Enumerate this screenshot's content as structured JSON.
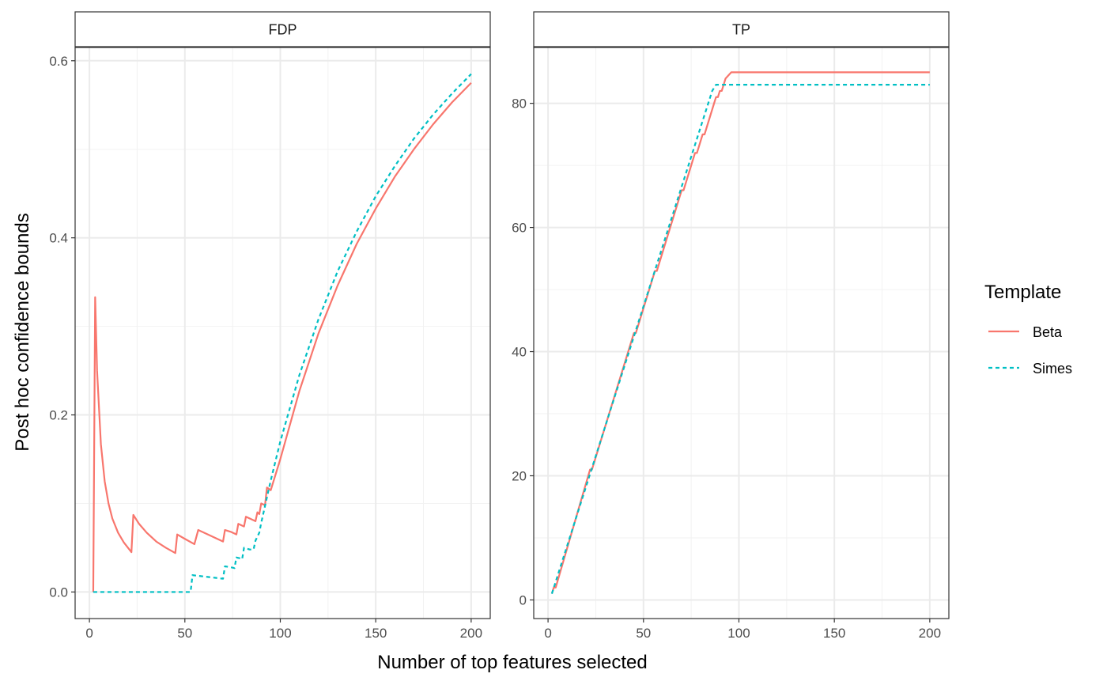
{
  "chart_data": {
    "type": "line",
    "xlabel": "Number of top features selected",
    "ylabel": "Post hoc confidence bounds",
    "legend": {
      "title": "Template",
      "placement": "right",
      "entries": [
        {
          "name": "Beta",
          "color": "#F8766D",
          "dash": "solid"
        },
        {
          "name": "Simes",
          "color": "#00BFC4",
          "dash": "dashed"
        }
      ]
    },
    "grid": true,
    "panels": [
      {
        "strip": "FDP",
        "xlim": [
          -7.5,
          210
        ],
        "ylim": [
          -0.03,
          0.615
        ],
        "x_ticks": [
          0,
          50,
          100,
          150,
          200
        ],
        "x_tick_labels": [
          "0",
          "50",
          "100",
          "150",
          "200"
        ],
        "y_ticks": [
          0.0,
          0.2,
          0.4,
          0.6
        ],
        "y_tick_labels": [
          "0.0",
          "0.2",
          "0.4",
          "0.6"
        ],
        "y_minor_ticks": [
          0.1,
          0.3,
          0.5
        ],
        "x_minor_ticks": [
          25,
          75,
          125,
          175
        ],
        "series": [
          {
            "name": "Beta",
            "points": [
              [
                2,
                0
              ],
              [
                3,
                0.333
              ],
              [
                4,
                0.25
              ],
              [
                6,
                0.167
              ],
              [
                8,
                0.125
              ],
              [
                10,
                0.1
              ],
              [
                12,
                0.083
              ],
              [
                15,
                0.067
              ],
              [
                18,
                0.056
              ],
              [
                22,
                0.045
              ],
              [
                23,
                0.087
              ],
              [
                26,
                0.077
              ],
              [
                30,
                0.067
              ],
              [
                35,
                0.057
              ],
              [
                40,
                0.05
              ],
              [
                45,
                0.044
              ],
              [
                46,
                0.065
              ],
              [
                50,
                0.06
              ],
              [
                55,
                0.054
              ],
              [
                57,
                0.07
              ],
              [
                62,
                0.065
              ],
              [
                66,
                0.061
              ],
              [
                70,
                0.057
              ],
              [
                71,
                0.07
              ],
              [
                74,
                0.068
              ],
              [
                77,
                0.065
              ],
              [
                78,
                0.077
              ],
              [
                80,
                0.075
              ],
              [
                81,
                0.074
              ],
              [
                82,
                0.085
              ],
              [
                84,
                0.083
              ],
              [
                87,
                0.08
              ],
              [
                88,
                0.09
              ],
              [
                89,
                0.088
              ],
              [
                90,
                0.1
              ],
              [
                91,
                0.099
              ],
              [
                92,
                0.098
              ],
              [
                93,
                0.118
              ],
              [
                95,
                0.115
              ],
              [
                100,
                0.15
              ],
              [
                110,
                0.227
              ],
              [
                120,
                0.292
              ],
              [
                130,
                0.346
              ],
              [
                140,
                0.393
              ],
              [
                150,
                0.433
              ],
              [
                160,
                0.469
              ],
              [
                170,
                0.5
              ],
              [
                180,
                0.528
              ],
              [
                190,
                0.553
              ],
              [
                200,
                0.575
              ]
            ]
          },
          {
            "name": "Simes",
            "points": [
              [
                2,
                0
              ],
              [
                53,
                0
              ],
              [
                54,
                0.019
              ],
              [
                58,
                0.018
              ],
              [
                62,
                0.017
              ],
              [
                66,
                0.016
              ],
              [
                70,
                0.015
              ],
              [
                71,
                0.029
              ],
              [
                74,
                0.028
              ],
              [
                76,
                0.027
              ],
              [
                77,
                0.039
              ],
              [
                79,
                0.038
              ],
              [
                80,
                0.037
              ],
              [
                81,
                0.05
              ],
              [
                84,
                0.048
              ],
              [
                86,
                0.048
              ],
              [
                87,
                0.058
              ],
              [
                89,
                0.067
              ],
              [
                90,
                0.078
              ],
              [
                95,
                0.126
              ],
              [
                100,
                0.17
              ],
              [
                110,
                0.245
              ],
              [
                120,
                0.308
              ],
              [
                130,
                0.362
              ],
              [
                140,
                0.407
              ],
              [
                150,
                0.447
              ],
              [
                160,
                0.481
              ],
              [
                170,
                0.512
              ],
              [
                180,
                0.539
              ],
              [
                190,
                0.563
              ],
              [
                200,
                0.585
              ]
            ]
          }
        ]
      },
      {
        "strip": "TP",
        "xlim": [
          -7.5,
          210
        ],
        "ylim": [
          -3,
          89
        ],
        "x_ticks": [
          0,
          50,
          100,
          150,
          200
        ],
        "x_tick_labels": [
          "0",
          "50",
          "100",
          "150",
          "200"
        ],
        "y_ticks": [
          0,
          20,
          40,
          60,
          80
        ],
        "y_tick_labels": [
          "0",
          "20",
          "40",
          "60",
          "80"
        ],
        "y_minor_ticks": [
          10,
          30,
          50,
          70
        ],
        "x_minor_ticks": [
          25,
          75,
          125,
          175
        ],
        "series": [
          {
            "name": "Beta",
            "points": [
              [
                2,
                1
              ],
              [
                3,
                2
              ],
              [
                4,
                2
              ],
              [
                22,
                21
              ],
              [
                23,
                21
              ],
              [
                45,
                43
              ],
              [
                46,
                43
              ],
              [
                56,
                53
              ],
              [
                57,
                53
              ],
              [
                70,
                66
              ],
              [
                71,
                66
              ],
              [
                77,
                72
              ],
              [
                78,
                72
              ],
              [
                81,
                75
              ],
              [
                82,
                75
              ],
              [
                87,
                80
              ],
              [
                88,
                81
              ],
              [
                89,
                81
              ],
              [
                90,
                82
              ],
              [
                91,
                82
              ],
              [
                93,
                84
              ],
              [
                96,
                85
              ],
              [
                200,
                85
              ]
            ]
          },
          {
            "name": "Simes",
            "points": [
              [
                2,
                1
              ],
              [
                86,
                82
              ],
              [
                88,
                83
              ],
              [
                200,
                83
              ]
            ]
          }
        ]
      }
    ]
  }
}
